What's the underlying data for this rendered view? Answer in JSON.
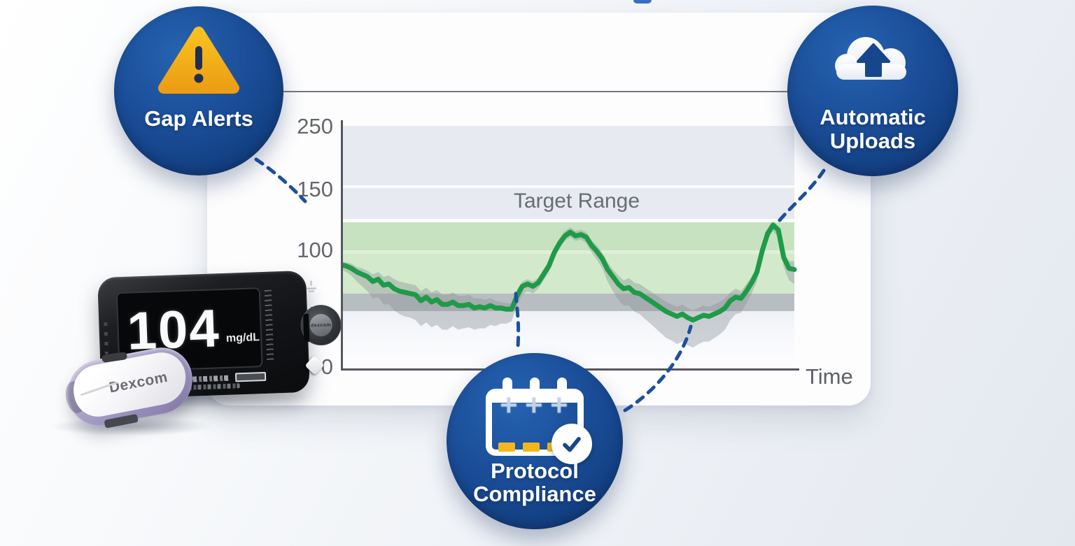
{
  "badges": {
    "gap_alerts": {
      "label": "Gap Alerts",
      "icon": "warning-triangle-icon"
    },
    "automatic_uploads": {
      "label_line1": "Automatic",
      "label_line2": "Uploads",
      "icon": "cloud-upload-icon"
    },
    "protocol_compliance": {
      "label_line1": "Protocol",
      "label_line2": "Compliance",
      "icon": "calendar-check-icon"
    }
  },
  "chart": {
    "target_range_label": "Target Range",
    "time_label": "Time",
    "yticks": [
      "250",
      "150",
      "100",
      "50",
      "0"
    ]
  },
  "chart_data": {
    "type": "line",
    "title": "",
    "xlabel": "Time",
    "ylabel": "",
    "ylim": [
      0,
      250
    ],
    "ytick_values": [
      0,
      50,
      100,
      150,
      250
    ],
    "xticks": "none",
    "grid": false,
    "legend": "none",
    "annotations": [
      "Target Range"
    ],
    "target_range_band": [
      65,
      125
    ],
    "low_gray_band": [
      50,
      65
    ],
    "series": [
      {
        "name": "glucose-mg-dl",
        "color": "#1e9b48",
        "values": [
          88,
          87,
          85,
          82,
          80,
          78,
          74,
          76,
          71,
          72,
          68,
          66,
          65,
          64,
          63,
          58,
          61,
          57,
          59,
          55,
          55,
          57,
          54,
          54,
          55,
          52,
          53,
          52,
          54,
          52,
          52,
          51,
          51,
          62,
          70,
          72,
          70,
          73,
          80,
          87,
          98,
          106,
          112,
          115,
          112,
          113,
          111,
          104,
          99,
          93,
          84,
          78,
          72,
          68,
          69,
          65,
          64,
          61,
          58,
          55,
          52,
          49,
          47,
          45,
          47,
          44,
          42,
          44,
          46,
          45,
          47,
          49,
          52,
          58,
          61,
          60,
          66,
          73,
          82,
          100,
          114,
          121,
          117,
          94,
          85,
          84
        ]
      },
      {
        "name": "variability-band-lower-offset",
        "values": [
          4,
          5,
          6,
          8,
          10,
          12,
          14,
          15,
          16,
          17,
          18,
          19,
          20,
          20,
          21,
          21,
          21,
          21,
          21,
          21,
          21,
          20,
          20,
          19,
          19,
          18,
          18,
          17,
          16,
          15,
          13,
          12,
          10,
          8,
          7,
          6,
          6,
          5,
          5,
          5,
          5,
          4,
          4,
          4,
          4,
          4,
          5,
          6,
          7,
          8,
          10,
          12,
          13,
          14,
          15,
          16,
          17,
          18,
          19,
          20,
          21,
          22,
          22,
          23,
          23,
          23,
          23,
          22,
          22,
          21,
          20,
          19,
          18,
          16,
          14,
          12,
          10,
          9,
          8,
          6,
          5,
          5,
          6,
          8,
          10,
          12
        ]
      },
      {
        "name": "variability-band-upper-offset",
        "values": [
          3,
          3,
          4,
          4,
          5,
          5,
          6,
          6,
          7,
          7,
          8,
          8,
          8,
          8,
          8,
          8,
          8,
          8,
          8,
          8,
          8,
          8,
          8,
          8,
          8,
          8,
          7,
          7,
          6,
          6,
          5,
          5,
          5,
          5,
          4,
          4,
          4,
          4,
          4,
          4,
          4,
          4,
          4,
          4,
          4,
          4,
          4,
          4,
          5,
          5,
          6,
          6,
          7,
          7,
          8,
          8,
          8,
          8,
          8,
          8,
          8,
          8,
          8,
          8,
          8,
          8,
          8,
          8,
          8,
          8,
          8,
          8,
          8,
          7,
          7,
          6,
          6,
          5,
          4,
          4,
          3,
          3,
          3,
          4,
          6,
          7
        ]
      }
    ]
  },
  "device": {
    "reading": "104",
    "units": "mg/dL",
    "brand": "Dexcom",
    "dial_label": "dexcom"
  },
  "colors": {
    "badge_blue": "#17478f",
    "connector_blue": "#1d4f9e",
    "line_green": "#1e9b48",
    "target_band_green": "#cde6c7",
    "upper_band_lavender": "#e8eaf1",
    "low_band_gray": "#b8bdc1",
    "warning_yellow": "#f5b31c"
  }
}
